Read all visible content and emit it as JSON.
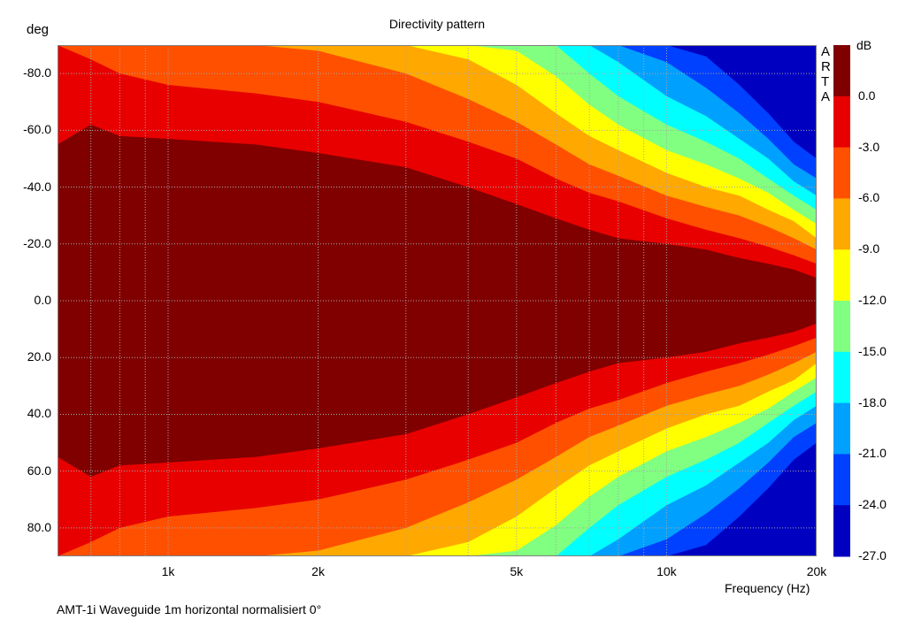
{
  "chart_data": {
    "type": "heatmap",
    "title": "Directivity pattern",
    "xlabel": "Frequency (Hz)",
    "ylabel": "deg",
    "colorbar_label": "dB",
    "watermark": "ARTA",
    "footer": "AMT-1i Waveguide 1m horizontal normalisiert 0°",
    "x_scale": "log",
    "xlim": [
      600,
      20000
    ],
    "ylim": [
      -90,
      90
    ],
    "y_inverted": true,
    "grid": true,
    "x_ticks": [
      {
        "value": 1000,
        "label": "1k"
      },
      {
        "value": 2000,
        "label": "2k"
      },
      {
        "value": 5000,
        "label": "5k"
      },
      {
        "value": 10000,
        "label": "10k"
      },
      {
        "value": 20000,
        "label": "20k"
      }
    ],
    "y_ticks": [
      {
        "value": -80,
        "label": "-80.0"
      },
      {
        "value": -60,
        "label": "-60.0"
      },
      {
        "value": -40,
        "label": "-40.0"
      },
      {
        "value": -20,
        "label": "-20.0"
      },
      {
        "value": 0,
        "label": "0.0"
      },
      {
        "value": 20,
        "label": "20.0"
      },
      {
        "value": 40,
        "label": "40.0"
      },
      {
        "value": 60,
        "label": "60.0"
      },
      {
        "value": 80,
        "label": "80.0"
      }
    ],
    "levels": [
      0,
      -3,
      -6,
      -9,
      -12,
      -15,
      -18,
      -21,
      -24,
      -27
    ],
    "level_labels": [
      "0.0",
      "-3.0",
      "-6.0",
      "-9.0",
      "-12.0",
      "-15.0",
      "-18.0",
      "-21.0",
      "-24.0",
      "-27.0"
    ],
    "level_colors": [
      "#800000",
      "#e80000",
      "#ff5000",
      "#ffa800",
      "#ffff00",
      "#80ff80",
      "#00ffff",
      "#00a0ff",
      "#0040ff",
      "#0000c0"
    ],
    "contours_deg": {
      "freq_hz": [
        600,
        700,
        800,
        1000,
        1500,
        2000,
        3000,
        4000,
        5000,
        6000,
        7000,
        8000,
        10000,
        12000,
        14000,
        16000,
        18000,
        20000
      ],
      "0": [
        55,
        62,
        58,
        57,
        55,
        52,
        47,
        40,
        34,
        29,
        25,
        22,
        20,
        18,
        15,
        13,
        11,
        8
      ],
      "-3": [
        90,
        85,
        80,
        76,
        73,
        70,
        63,
        56,
        50,
        43,
        38,
        35,
        29,
        25,
        22,
        19,
        16,
        13
      ],
      "-6": [
        90,
        90,
        90,
        90,
        90,
        88,
        80,
        71,
        63,
        55,
        48,
        44,
        37,
        33,
        30,
        26,
        22,
        18
      ],
      "-9": [
        90,
        90,
        90,
        90,
        90,
        90,
        90,
        85,
        76,
        66,
        58,
        53,
        45,
        40,
        37,
        32,
        28,
        22
      ],
      "-12": [
        90,
        90,
        90,
        90,
        90,
        90,
        90,
        90,
        88,
        79,
        69,
        62,
        53,
        48,
        43,
        38,
        32,
        27
      ],
      "-15": [
        90,
        90,
        90,
        90,
        90,
        90,
        90,
        90,
        90,
        90,
        80,
        72,
        62,
        56,
        50,
        43,
        37,
        32
      ],
      "-18": [
        90,
        90,
        90,
        90,
        90,
        90,
        90,
        90,
        90,
        90,
        90,
        84,
        72,
        65,
        57,
        50,
        42,
        37
      ],
      "-21": [
        90,
        90,
        90,
        90,
        90,
        90,
        90,
        90,
        90,
        90,
        90,
        90,
        84,
        75,
        66,
        57,
        48,
        43
      ],
      "-24": [
        90,
        90,
        90,
        90,
        90,
        90,
        90,
        90,
        90,
        90,
        90,
        90,
        90,
        86,
        76,
        66,
        56,
        50
      ]
    }
  }
}
